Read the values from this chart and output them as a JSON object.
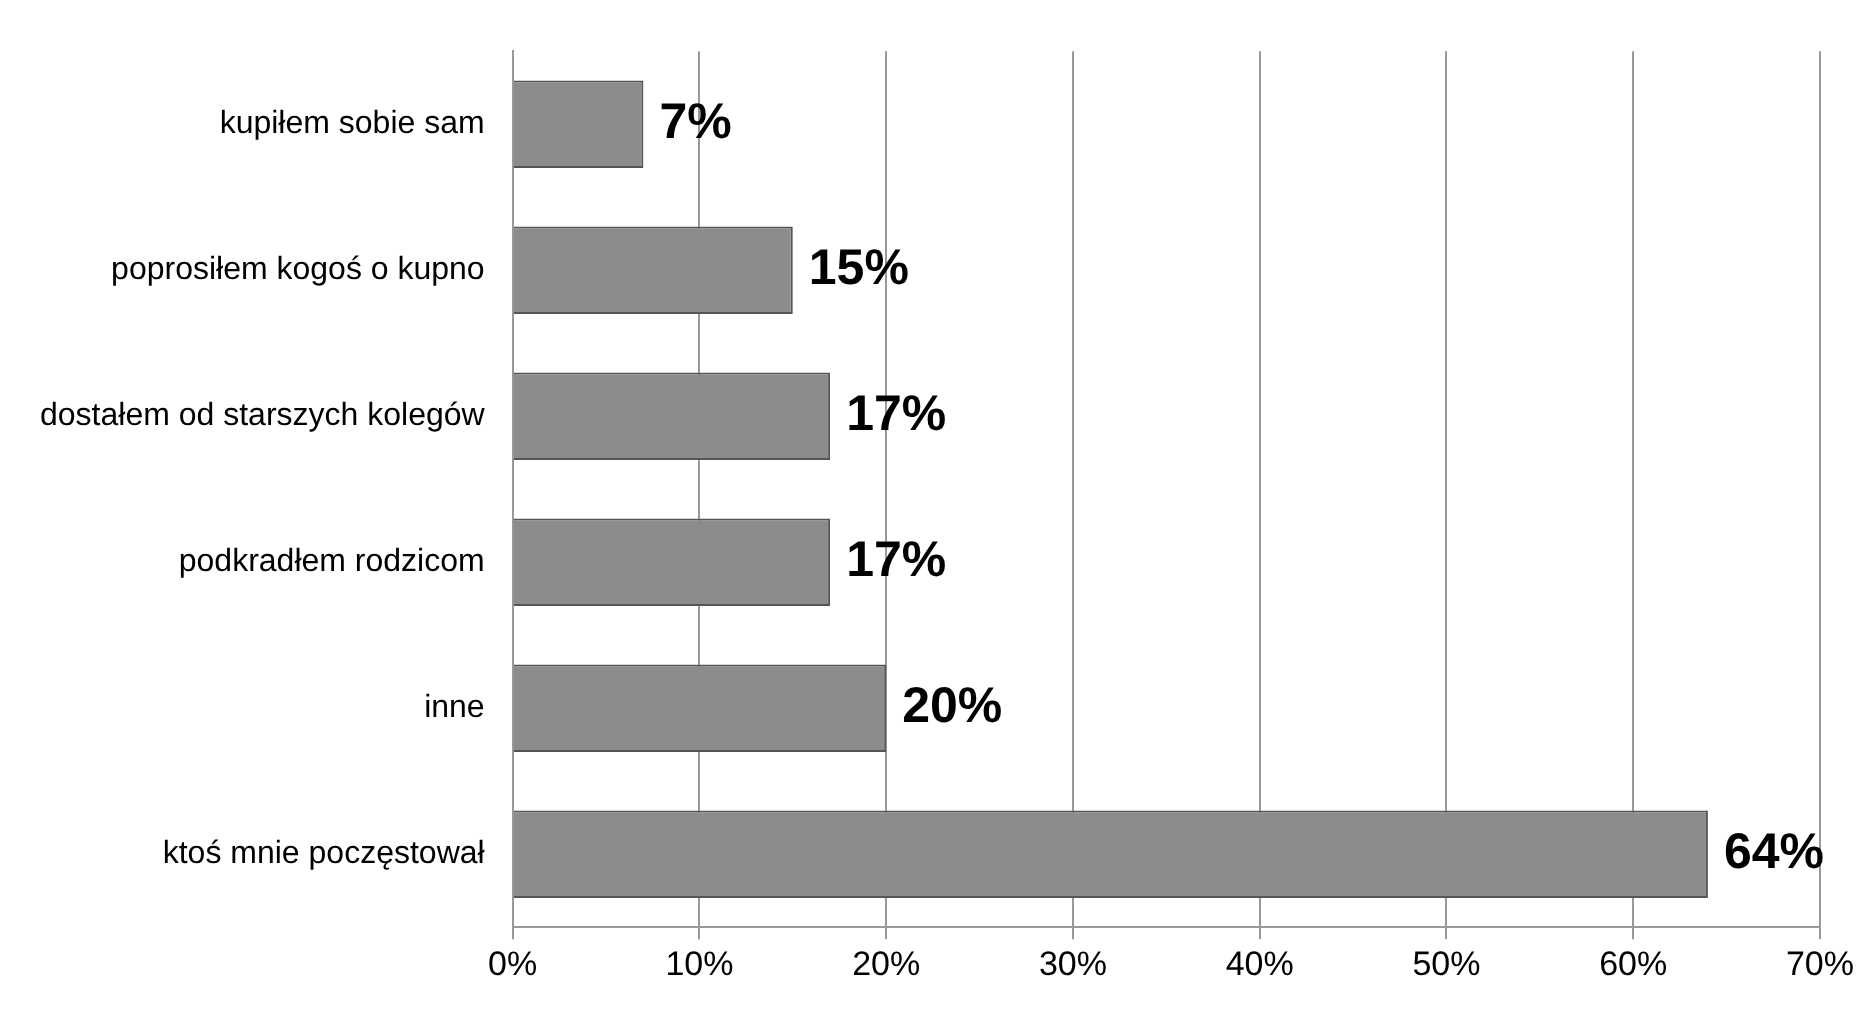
{
  "chart_data": {
    "type": "bar",
    "orientation": "horizontal",
    "categories": [
      "kupiłem sobie sam",
      "poprosiłem kogoś o kupno",
      "dostałem od starszych kolegów",
      "podkradłem rodzicom",
      "inne",
      "ktoś mnie poczęstował"
    ],
    "values": [
      7,
      15,
      17,
      17,
      20,
      64
    ],
    "value_labels": [
      "7%",
      "15%",
      "17%",
      "17%",
      "20%",
      "64%"
    ],
    "color": "#8c8c8c",
    "xlim": [
      0,
      70
    ],
    "xticks": [
      {
        "value": 0,
        "label": "0%"
      },
      {
        "value": 10,
        "label": "10%"
      },
      {
        "value": 20,
        "label": "20%"
      },
      {
        "value": 30,
        "label": "30%"
      },
      {
        "value": 40,
        "label": "40%"
      },
      {
        "value": 50,
        "label": "50%"
      },
      {
        "value": 60,
        "label": "60%"
      },
      {
        "value": 70,
        "label": "70%"
      }
    ],
    "grid": "x"
  }
}
